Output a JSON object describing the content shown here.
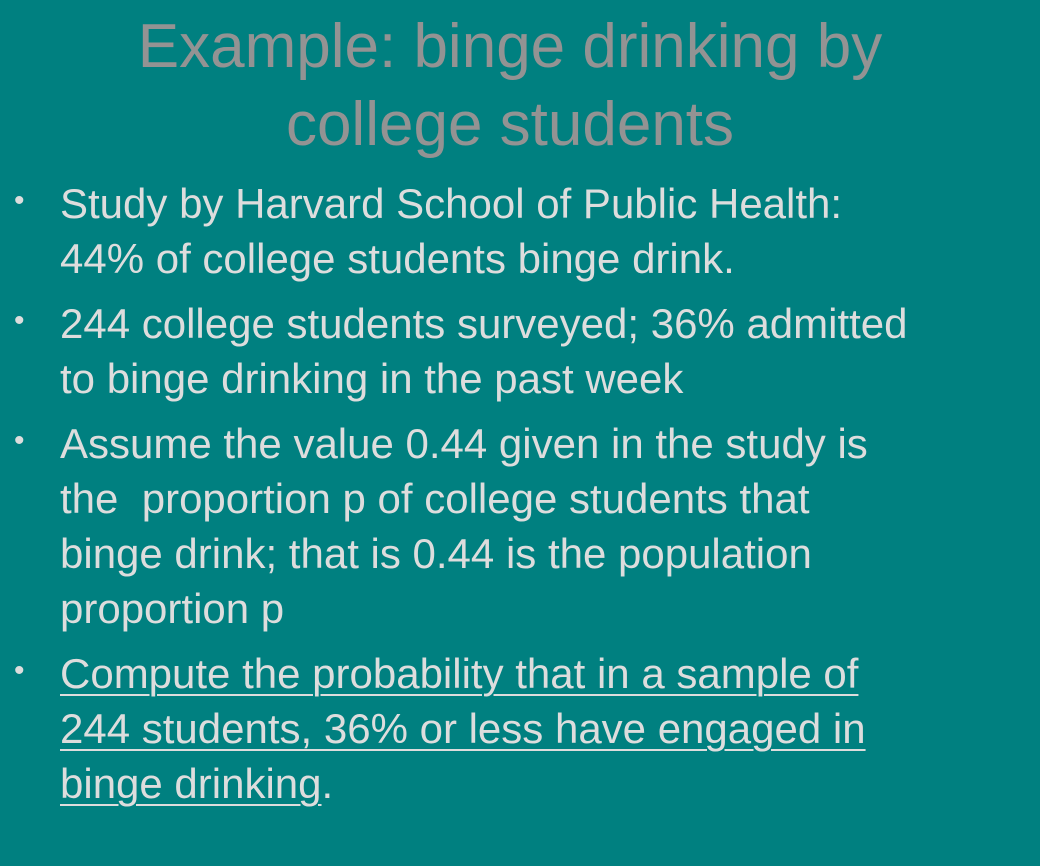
{
  "slide": {
    "title_lines": [
      "Example: binge drinking by",
      "college students"
    ],
    "bullet_symbol": "•",
    "bullets": [
      {
        "lines": [
          "Study by Harvard School of Public Health:",
          "44% of college students binge drink."
        ]
      },
      {
        "lines": [
          "244 college students surveyed; 36% admitted",
          "to binge drinking in the past week"
        ]
      },
      {
        "lines": [
          "Assume the value 0.44 given in the study is",
          "the  proportion p of college students that",
          "binge drink; that is 0.44 is the population",
          "proportion p"
        ]
      },
      {
        "lines": [
          "Compute the probability that in a sample of",
          "244 students, 36% or less have engaged in",
          "binge drinking"
        ],
        "trailing": "."
      }
    ],
    "colors": {
      "background": "#008080",
      "title": "#939393",
      "body_text": "#dddddd"
    }
  }
}
